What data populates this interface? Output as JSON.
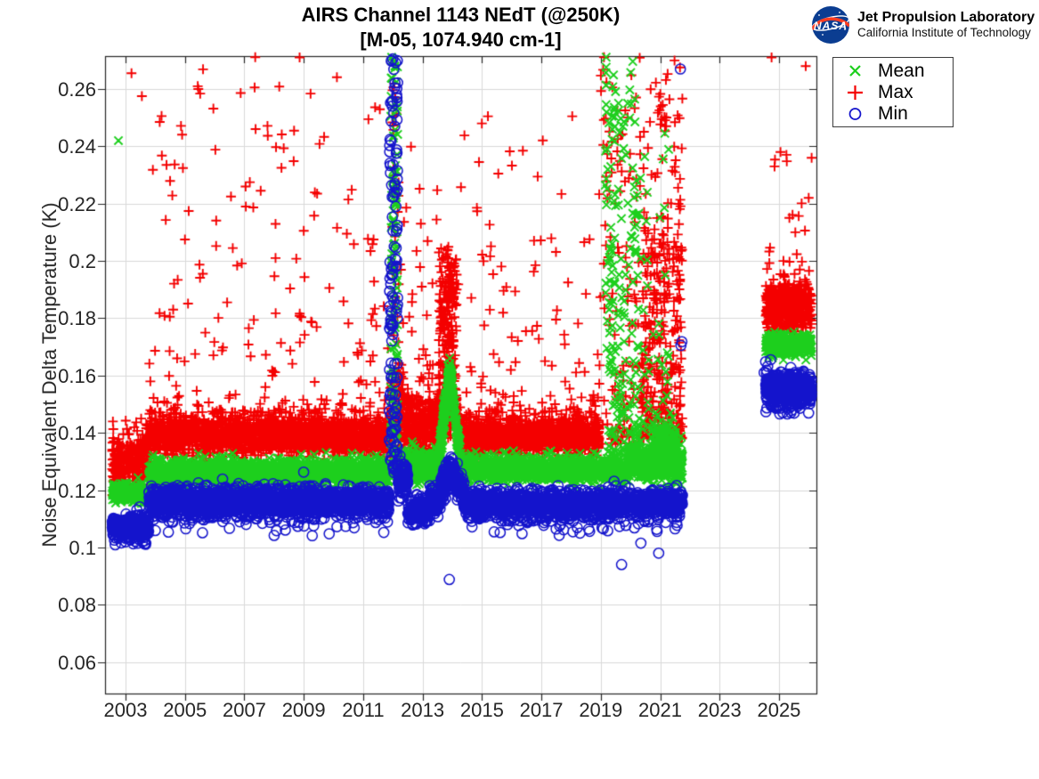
{
  "header": {
    "logo": {
      "org": "NASA",
      "name": "Jet Propulsion Laboratory",
      "sub": "California Institute of Technology"
    }
  },
  "chart_data": {
    "type": "scatter",
    "title": "AIRS Channel 1143 NEdT (@250K)",
    "subtitle": "[M-05, 1074.940 cm-1]",
    "xlabel": "",
    "ylabel": "Noise Equivalent Delta Temperature (K)",
    "xlim": [
      2002.31,
      2026.26
    ],
    "ylim": [
      0.049,
      0.2715
    ],
    "xticks": [
      2003,
      2005,
      2007,
      2009,
      2011,
      2013,
      2015,
      2017,
      2019,
      2021,
      2023,
      2025
    ],
    "yticks": [
      0.06,
      0.08,
      0.1,
      0.12,
      0.14,
      0.16,
      0.18,
      0.2,
      0.22,
      0.24,
      0.26
    ],
    "ytick_labels": [
      "0.06",
      "0.08",
      "0.1",
      "0.12",
      "0.14",
      "0.16",
      "0.18",
      "0.2",
      "0.22",
      "0.24",
      "0.26"
    ],
    "grid": true,
    "grid_color": "#d9d9d9",
    "axis_color": "#262626",
    "legend": {
      "position": "northeast",
      "entries": [
        {
          "label": "Mean",
          "marker": "x",
          "color": "#1dcf1d"
        },
        {
          "label": "Max",
          "marker": "+",
          "color": "#f40000"
        },
        {
          "label": "Min",
          "marker": "o",
          "color": "#1414cc"
        }
      ]
    },
    "data_gap_years": [
      2021.75,
      2024.55
    ],
    "series": [
      {
        "name": "Max",
        "marker": "+",
        "color": "#f40000",
        "bands": [
          {
            "x0": 2002.55,
            "x1": 2003.78,
            "c": 0.1305,
            "sd": 0.0052,
            "n": 300
          },
          {
            "x0": 2003.78,
            "x1": 2011.9,
            "c": 0.1392,
            "sd": 0.0033,
            "n": 1900
          },
          {
            "x0": 2011.9,
            "x1": 2012.35,
            "c": 0.146,
            "sd": 0.007,
            "n": 110
          },
          {
            "x0": 2012.35,
            "x1": 2013.55,
            "c": 0.1415,
            "sd": 0.0048,
            "n": 330
          },
          {
            "x0": 2013.55,
            "x1": 2014.15,
            "c": 0.147,
            "sd": 0.004,
            "n": 120
          },
          {
            "x0": 2014.15,
            "x1": 2018.95,
            "c": 0.1388,
            "sd": 0.0033,
            "n": 1250
          },
          {
            "x0": 2024.55,
            "x1": 2026.1,
            "c": 0.1845,
            "sd": 0.0042,
            "n": 500
          }
        ],
        "columns": [
          {
            "x0": 2003.78,
            "x1": 2011.9,
            "y0": 0.147,
            "y1": 0.272,
            "n": 200,
            "bias": 2.6
          },
          {
            "x0": 2011.95,
            "x1": 2012.35,
            "y0": 0.158,
            "y1": 0.235,
            "n": 30,
            "bias": 2.0
          },
          {
            "x0": 2011.97,
            "x1": 2012.12,
            "y0": 0.243,
            "y1": 0.262,
            "n": 9,
            "bias": 1.0
          },
          {
            "x0": 2012.35,
            "x1": 2013.55,
            "y0": 0.15,
            "y1": 0.24,
            "n": 45,
            "bias": 2.4
          },
          {
            "x0": 2013.55,
            "x1": 2014.15,
            "y0": 0.146,
            "y1": 0.205,
            "n": 280,
            "bias": 1.7
          },
          {
            "x0": 2014.15,
            "x1": 2018.95,
            "y0": 0.147,
            "y1": 0.255,
            "n": 110,
            "bias": 2.6
          },
          {
            "x0": 2018.95,
            "x1": 2020.35,
            "y0": 0.136,
            "y1": 0.272,
            "n": 140,
            "bias": 2.0
          },
          {
            "x0": 2020.35,
            "x1": 2021.75,
            "y0": 0.138,
            "y1": 0.205,
            "n": 320,
            "bias": 1.6
          },
          {
            "x0": 2020.4,
            "x1": 2021.75,
            "y0": 0.2,
            "y1": 0.272,
            "n": 80,
            "bias": 1.3
          },
          {
            "x0": 2024.55,
            "x1": 2026.1,
            "y0": 0.194,
            "y1": 0.245,
            "n": 16,
            "bias": 1.5
          }
        ],
        "points": [
          [
            2003.2,
            0.2655
          ],
          [
            2003.55,
            0.2575
          ],
          [
            2003.92,
            0.2318
          ],
          [
            2004.15,
            0.2485
          ],
          [
            2004.38,
            0.2335
          ],
          [
            2005.45,
            0.26
          ],
          [
            2005.0,
            0.2075
          ],
          [
            2006.05,
            0.2052
          ],
          [
            2006.55,
            0.2225
          ],
          [
            2007.05,
            0.219
          ],
          [
            2007.55,
            0.2245
          ],
          [
            2008.25,
            0.2325
          ],
          [
            2008.05,
            0.201
          ],
          [
            2009.0,
            0.2105
          ],
          [
            2009.45,
            0.2235
          ],
          [
            2010.45,
            0.2095
          ],
          [
            2011.35,
            0.2075
          ],
          [
            2014.9,
            0.2345
          ],
          [
            2015.2,
            0.2505
          ],
          [
            2015.55,
            0.2305
          ],
          [
            2016.8,
            0.1985
          ],
          [
            2017.9,
            0.1925
          ],
          [
            2018.5,
            0.1885
          ],
          [
            2024.75,
            0.271
          ],
          [
            2025.9,
            0.268
          ],
          [
            2024.85,
            0.233
          ],
          [
            2025.05,
            0.238
          ],
          [
            2025.35,
            0.215
          ],
          [
            2025.55,
            0.21
          ],
          [
            2025.15,
            0.2
          ],
          [
            2025.7,
            0.197
          ],
          [
            2026.0,
            0.222
          ]
        ]
      },
      {
        "name": "Mean",
        "marker": "x",
        "color": "#1dcf1d",
        "bands": [
          {
            "x0": 2002.55,
            "x1": 2003.78,
            "c": 0.119,
            "sd": 0.0017,
            "n": 280
          },
          {
            "x0": 2003.78,
            "x1": 2011.9,
            "c": 0.1263,
            "sd": 0.0021,
            "n": 1950
          },
          {
            "x0": 2012.17,
            "x1": 2013.55,
            "c": 0.1285,
            "sd": 0.0028,
            "n": 330
          },
          {
            "x0": 2013.55,
            "x1": 2013.9,
            "c": 0.131,
            "c1": 0.162,
            "sd": 0.0028,
            "n": 150
          },
          {
            "x0": 2013.9,
            "x1": 2014.3,
            "c": 0.162,
            "c1": 0.129,
            "sd": 0.0028,
            "n": 150
          },
          {
            "x0": 2014.3,
            "x1": 2018.95,
            "c": 0.1272,
            "sd": 0.002,
            "n": 1200
          },
          {
            "x0": 2018.95,
            "x1": 2019.9,
            "c": 0.1275,
            "sd": 0.0025,
            "n": 150
          },
          {
            "x0": 2019.9,
            "x1": 2021.75,
            "c": 0.1295,
            "sd": 0.0032,
            "n": 500
          },
          {
            "x0": 2020.75,
            "x1": 2021.55,
            "c": 0.1355,
            "sd": 0.0038,
            "n": 170
          },
          {
            "x0": 2024.55,
            "x1": 2026.1,
            "c": 0.1705,
            "sd": 0.0018,
            "n": 430
          }
        ],
        "columns": [
          {
            "x0": 2011.92,
            "x1": 2012.17,
            "y0": 0.133,
            "y1": 0.272,
            "n": 120,
            "bias": 1.2
          },
          {
            "x0": 2019.15,
            "x1": 2019.5,
            "y0": 0.132,
            "y1": 0.272,
            "n": 80,
            "bias": 1.3
          },
          {
            "x0": 2019.55,
            "x1": 2019.85,
            "y0": 0.132,
            "y1": 0.26,
            "n": 50,
            "bias": 1.4
          },
          {
            "x0": 2019.9,
            "x1": 2020.35,
            "y0": 0.135,
            "y1": 0.272,
            "n": 70,
            "bias": 1.6
          },
          {
            "x0": 2020.4,
            "x1": 2021.3,
            "y0": 0.14,
            "y1": 0.245,
            "n": 40,
            "bias": 2.0
          }
        ],
        "points": [
          [
            2002.76,
            0.242
          ]
        ]
      },
      {
        "name": "Min",
        "marker": "o",
        "color": "#1414cc",
        "bands": [
          {
            "x0": 2002.55,
            "x1": 2003.78,
            "c": 0.1072,
            "sd": 0.0021,
            "n": 320
          },
          {
            "x0": 2003.78,
            "x1": 2011.88,
            "c": 0.116,
            "sd": 0.0024,
            "n": 2000
          },
          {
            "x0": 2012.16,
            "x1": 2012.5,
            "c": 0.1235,
            "sd": 0.0032,
            "n": 90
          },
          {
            "x0": 2012.5,
            "x1": 2013.25,
            "c": 0.1125,
            "sd": 0.0022,
            "n": 160
          },
          {
            "x0": 2013.25,
            "x1": 2013.62,
            "c": 0.1168,
            "sd": 0.0024,
            "n": 90
          },
          {
            "x0": 2013.62,
            "x1": 2013.95,
            "c": 0.121,
            "c1": 0.1275,
            "sd": 0.0026,
            "n": 90
          },
          {
            "x0": 2013.95,
            "x1": 2014.4,
            "c": 0.1275,
            "c1": 0.117,
            "sd": 0.0026,
            "n": 100
          },
          {
            "x0": 2014.4,
            "x1": 2021.75,
            "c": 0.1152,
            "sd": 0.0023,
            "n": 1750
          },
          {
            "x0": 2024.55,
            "x1": 2026.1,
            "c": 0.1555,
            "sd": 0.0026,
            "n": 500
          }
        ],
        "columns": [
          {
            "x0": 2011.88,
            "x1": 2012.16,
            "y0": 0.125,
            "y1": 0.2705,
            "n": 140,
            "bias": 1.35
          },
          {
            "x0": 2003.78,
            "x1": 2011.88,
            "y0": 0.104,
            "y1": 0.111,
            "n": 60,
            "bias": -2.0
          },
          {
            "x0": 2002.6,
            "x1": 2003.7,
            "y0": 0.1005,
            "y1": 0.1045,
            "n": 12,
            "bias": -1.2
          },
          {
            "x0": 2014.4,
            "x1": 2021.7,
            "y0": 0.104,
            "y1": 0.1105,
            "n": 55,
            "bias": -2.0
          },
          {
            "x0": 2024.6,
            "x1": 2026.05,
            "y0": 0.1465,
            "y1": 0.1515,
            "n": 22,
            "bias": -1.5
          }
        ],
        "points": [
          [
            2012.0,
            0.2705
          ],
          [
            2013.9,
            0.0888
          ],
          [
            2019.7,
            0.094
          ],
          [
            2020.35,
            0.1015
          ],
          [
            2020.95,
            0.098
          ],
          [
            2021.5,
            0.1065
          ],
          [
            2016.35,
            0.1048
          ],
          [
            2017.6,
            0.1042
          ],
          [
            2018.3,
            0.105
          ],
          [
            2021.68,
            0.267
          ],
          [
            2021.7,
            0.1705
          ],
          [
            2021.73,
            0.1718
          ],
          [
            2024.5,
            0.161
          ],
          [
            2024.55,
            0.1648
          ],
          [
            2024.62,
            0.1632
          ],
          [
            2024.72,
            0.1655
          ]
        ]
      }
    ]
  }
}
